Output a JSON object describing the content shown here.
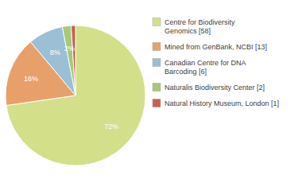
{
  "chart_data": {
    "type": "pie",
    "categories": [
      "Centre for Biodiversity\nGenomics [58]",
      "Mined from GenBank, NCBI [13]",
      "Canadian Centre for DNA\nBarcoding [6]",
      "Naturalis Biodiversity Center [2]",
      "Natural History Museum, London [1]"
    ],
    "values": [
      72,
      16,
      8,
      2,
      1
    ],
    "value_labels": [
      "72%",
      "16%",
      "8%",
      "2%",
      null
    ],
    "colors": [
      "#d4df8a",
      "#e8a06a",
      "#9bbfd4",
      "#a8c87a",
      "#c86050"
    ],
    "data_labels": true,
    "legend": "right"
  }
}
